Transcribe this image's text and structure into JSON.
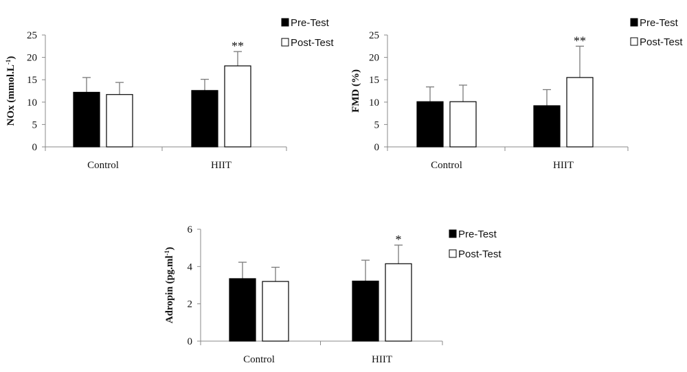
{
  "chart_data": [
    {
      "type": "bar",
      "categories": [
        "Control",
        "HIIT"
      ],
      "ylabel": "NOx (mmol.L",
      "ylabel_sup": "-1",
      "ylabel_close": ")",
      "ylim": [
        0,
        25
      ],
      "yticks": [
        0,
        5,
        10,
        15,
        20,
        25
      ],
      "legend": [
        "Pre-Test",
        "Post-Test"
      ],
      "legend_position": "top-right",
      "series": [
        {
          "name": "Pre-Test",
          "values": [
            12.2,
            12.6
          ],
          "errors": [
            3.3,
            2.5
          ],
          "fill": "#000000"
        },
        {
          "name": "Post-Test",
          "values": [
            11.7,
            18.1
          ],
          "errors": [
            2.7,
            3.2
          ],
          "fill": "#ffffff"
        }
      ],
      "annotations": [
        {
          "category": "HIIT",
          "series": "Post-Test",
          "text": "**"
        }
      ]
    },
    {
      "type": "bar",
      "categories": [
        "Control",
        "HIIT"
      ],
      "ylabel": "FMD (%)",
      "ylabel_sup": "",
      "ylabel_close": "",
      "ylim": [
        0,
        25
      ],
      "yticks": [
        0,
        5,
        10,
        15,
        20,
        25
      ],
      "legend": [
        "Pre-Test",
        "Post-Test"
      ],
      "legend_position": "top-right",
      "series": [
        {
          "name": "Pre-Test",
          "values": [
            10.1,
            9.2
          ],
          "errors": [
            3.3,
            3.6
          ],
          "fill": "#000000"
        },
        {
          "name": "Post-Test",
          "values": [
            10.1,
            15.5
          ],
          "errors": [
            3.7,
            7.0
          ],
          "fill": "#ffffff"
        }
      ],
      "annotations": [
        {
          "category": "HIIT",
          "series": "Post-Test",
          "text": "**"
        }
      ]
    },
    {
      "type": "bar",
      "categories": [
        "Control",
        "HIIT"
      ],
      "ylabel": "Adropin (pg.ml",
      "ylabel_sup": "-1",
      "ylabel_close": ")",
      "ylim": [
        0,
        6
      ],
      "yticks": [
        0,
        2,
        4,
        6
      ],
      "legend": [
        "Pre-Test",
        "Post-Test"
      ],
      "legend_position": "top-right",
      "series": [
        {
          "name": "Pre-Test",
          "values": [
            3.35,
            3.22
          ],
          "errors": [
            0.88,
            1.12
          ],
          "fill": "#000000"
        },
        {
          "name": "Post-Test",
          "values": [
            3.2,
            4.15
          ],
          "errors": [
            0.76,
            1.0
          ],
          "fill": "#ffffff"
        }
      ],
      "annotations": [
        {
          "category": "HIIT",
          "series": "Post-Test",
          "text": "*"
        }
      ]
    }
  ]
}
